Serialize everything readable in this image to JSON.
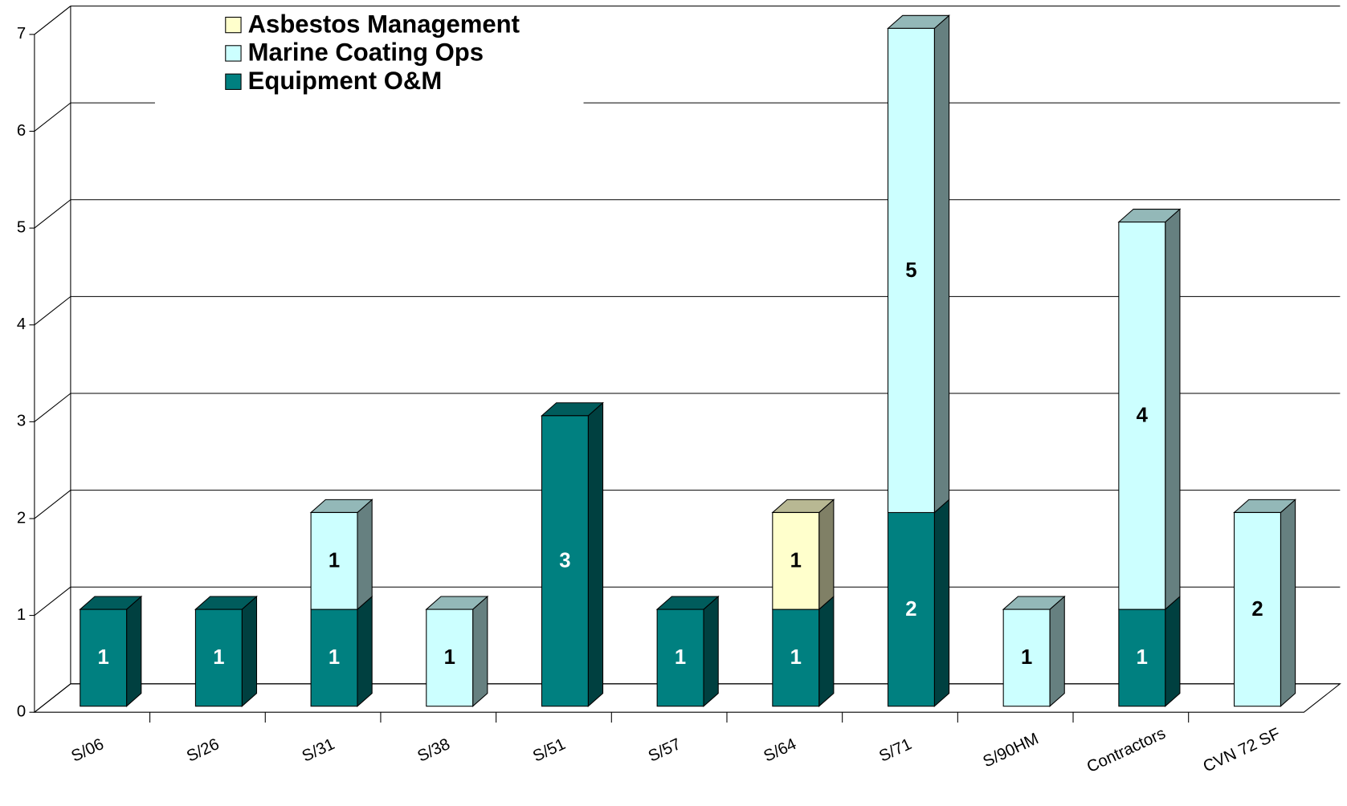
{
  "chart_data": {
    "type": "bar3d_stacked",
    "categories": [
      "S/06",
      "S/26",
      "S/31",
      "S/38",
      "S/51",
      "S/57",
      "S/64",
      "S/71",
      "S/90HM",
      "Contractors",
      "CVN 72  SF"
    ],
    "series": [
      {
        "name": "Equipment O&M",
        "color": "#008080",
        "values": [
          1,
          1,
          1,
          null,
          3,
          1,
          1,
          2,
          null,
          1,
          null
        ]
      },
      {
        "name": "Marine Coating Ops",
        "color": "#ccffff",
        "values": [
          null,
          null,
          1,
          1,
          null,
          null,
          null,
          5,
          1,
          4,
          2
        ]
      },
      {
        "name": "Asbestos Management",
        "color": "#ffffcc",
        "values": [
          null,
          null,
          null,
          null,
          null,
          null,
          1,
          null,
          null,
          null,
          null
        ]
      }
    ],
    "ylim": [
      0,
      7
    ],
    "yticks": [
      0,
      1,
      2,
      3,
      4,
      5,
      6,
      7
    ],
    "grid": true,
    "legend": "top-left"
  }
}
